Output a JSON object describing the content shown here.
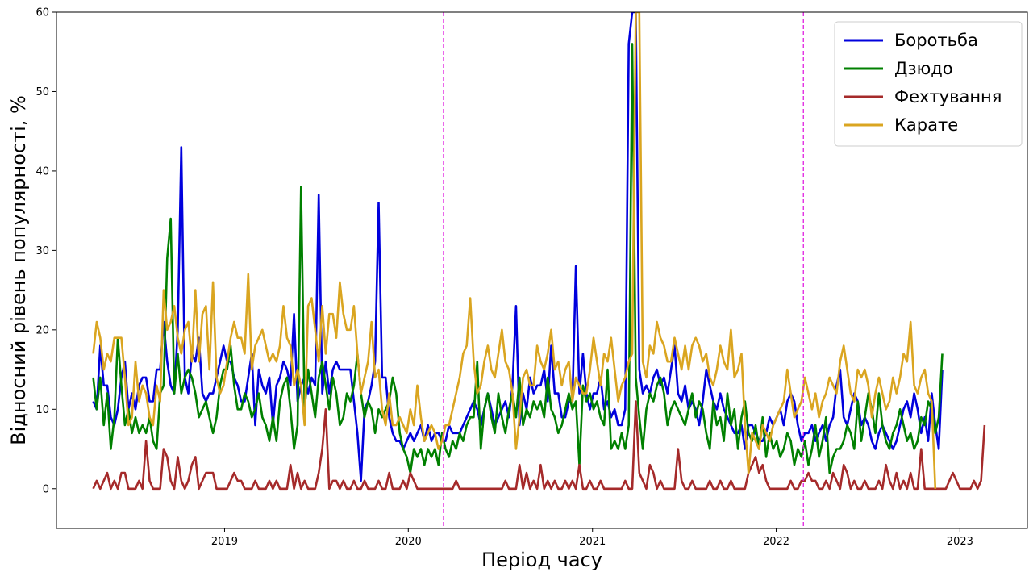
{
  "chart_data": {
    "type": "line",
    "title": "",
    "xlabel": "Період часу",
    "ylabel": "Відносний рівень популярності, %",
    "x_start": "2018-04-15",
    "x_step_days": 7,
    "xlim": [
      "2018-02-01",
      "2023-05-15"
    ],
    "ylim": [
      -5,
      60
    ],
    "yticks": [
      0,
      10,
      20,
      30,
      40,
      50,
      60
    ],
    "xticks": [
      {
        "date": "2019-01-01",
        "label": "2019"
      },
      {
        "date": "2020-01-01",
        "label": "2020"
      },
      {
        "date": "2021-01-01",
        "label": "2021"
      },
      {
        "date": "2022-01-01",
        "label": "2022"
      },
      {
        "date": "2023-01-01",
        "label": "2023"
      }
    ],
    "vlines": [
      {
        "date": "2020-03-11",
        "color": "#e020e0"
      },
      {
        "date": "2022-02-24",
        "color": "#e020e0"
      }
    ],
    "legend_position": "top-right",
    "grid": false,
    "series": [
      {
        "name": "Боротьба",
        "color": "#0000dd",
        "values": [
          11,
          10,
          18,
          13,
          13,
          9,
          8,
          10,
          14,
          16,
          10,
          12,
          10,
          13,
          14,
          14,
          11,
          11,
          15,
          15,
          21,
          16,
          13,
          12,
          20,
          43,
          14,
          12,
          17,
          16,
          19,
          12,
          11,
          12,
          12,
          14,
          16,
          18,
          16,
          16,
          14,
          13,
          11,
          11,
          14,
          17,
          8,
          15,
          13,
          12,
          14,
          8,
          13,
          14,
          16,
          15,
          13,
          22,
          11,
          13,
          14,
          12,
          14,
          13,
          37,
          12,
          16,
          12,
          15,
          16,
          15,
          15,
          15,
          15,
          11,
          7,
          1,
          10,
          11,
          13,
          16,
          36,
          14,
          14,
          9,
          7,
          6,
          6,
          5,
          6,
          7,
          6,
          7,
          8,
          6,
          8,
          6,
          7,
          7,
          6,
          6,
          8,
          7,
          7,
          7,
          8,
          9,
          10,
          11,
          10,
          8,
          10,
          12,
          10,
          8,
          9,
          10,
          11,
          9,
          13,
          23,
          8,
          12,
          10,
          14,
          12,
          13,
          13,
          15,
          11,
          18,
          12,
          12,
          9,
          9,
          11,
          11,
          28,
          12,
          17,
          12,
          10,
          12,
          12,
          14,
          10,
          11,
          9,
          10,
          8,
          8,
          10,
          56,
          60,
          60,
          15,
          12,
          13,
          12,
          14,
          15,
          13,
          14,
          12,
          15,
          18,
          12,
          11,
          13,
          10,
          11,
          10,
          8,
          11,
          15,
          13,
          11,
          10,
          12,
          10,
          9,
          8,
          7,
          7,
          8,
          5,
          8,
          8,
          7,
          6,
          6,
          7,
          9,
          8,
          9,
          10,
          8,
          11,
          12,
          11,
          8,
          6,
          7,
          7,
          8,
          6,
          7,
          8,
          6,
          8,
          9,
          13,
          15,
          9,
          8,
          10,
          12,
          11,
          8,
          9,
          8,
          6,
          5,
          7,
          8,
          7,
          6,
          5,
          6,
          8,
          10,
          11,
          9,
          12,
          10,
          7,
          9,
          6,
          12,
          8,
          5,
          15
        ]
      },
      {
        "name": "Дзюдо",
        "color": "#008000",
        "values": [
          14,
          10,
          14,
          8,
          12,
          5,
          9,
          19,
          13,
          8,
          10,
          7,
          9,
          7,
          8,
          7,
          9,
          6,
          5,
          12,
          13,
          29,
          34,
          12,
          17,
          12,
          14,
          15,
          14,
          12,
          9,
          10,
          11,
          9,
          7,
          9,
          13,
          15,
          15,
          18,
          13,
          10,
          10,
          12,
          11,
          9,
          10,
          12,
          9,
          8,
          6,
          9,
          6,
          11,
          13,
          14,
          10,
          5,
          8,
          38,
          10,
          15,
          12,
          9,
          14,
          16,
          13,
          10,
          14,
          12,
          8,
          9,
          12,
          11,
          13,
          17,
          12,
          9,
          11,
          10,
          7,
          10,
          9,
          10,
          11,
          14,
          12,
          7,
          5,
          4,
          2,
          5,
          4,
          5,
          3,
          5,
          4,
          5,
          3,
          7,
          5,
          4,
          6,
          5,
          7,
          6,
          8,
          9,
          9,
          16,
          5,
          10,
          12,
          9,
          7,
          12,
          9,
          7,
          10,
          12,
          9,
          14,
          8,
          10,
          9,
          11,
          10,
          11,
          9,
          14,
          10,
          9,
          7,
          8,
          10,
          12,
          10,
          11,
          3,
          13,
          11,
          12,
          10,
          11,
          9,
          8,
          15,
          5,
          6,
          5,
          7,
          5,
          8,
          56,
          14,
          9,
          5,
          10,
          12,
          11,
          13,
          14,
          12,
          8,
          10,
          11,
          10,
          9,
          8,
          10,
          12,
          9,
          11,
          10,
          7,
          5,
          11,
          8,
          9,
          6,
          12,
          8,
          10,
          5,
          9,
          11,
          7,
          6,
          8,
          5,
          9,
          4,
          7,
          5,
          6,
          4,
          5,
          7,
          6,
          3,
          5,
          4,
          6,
          3,
          5,
          8,
          4,
          6,
          9,
          2,
          4,
          5,
          5,
          6,
          8,
          7,
          5,
          11,
          6,
          9,
          12,
          10,
          7,
          12,
          8,
          6,
          5,
          7,
          8,
          10,
          8,
          6,
          7,
          5,
          6,
          9,
          8,
          11,
          10,
          7,
          9,
          17
        ]
      },
      {
        "name": "Фехтування",
        "color": "#a52a2a",
        "values": [
          0,
          1,
          0,
          1,
          2,
          0,
          1,
          0,
          2,
          2,
          0,
          0,
          0,
          1,
          0,
          6,
          1,
          0,
          0,
          0,
          5,
          4,
          1,
          0,
          4,
          1,
          0,
          1,
          3,
          4,
          0,
          1,
          2,
          2,
          2,
          0,
          0,
          0,
          0,
          1,
          2,
          1,
          1,
          0,
          0,
          0,
          1,
          0,
          0,
          0,
          1,
          0,
          1,
          0,
          0,
          0,
          3,
          0,
          2,
          0,
          1,
          0,
          0,
          0,
          2,
          5,
          10,
          0,
          1,
          1,
          0,
          1,
          0,
          0,
          1,
          0,
          0,
          1,
          0,
          0,
          0,
          1,
          0,
          0,
          2,
          0,
          0,
          0,
          1,
          0,
          2,
          1,
          0,
          0,
          0,
          0,
          0,
          0,
          0,
          0,
          0,
          0,
          0,
          1,
          0,
          0,
          0,
          0,
          0,
          0,
          0,
          0,
          0,
          0,
          0,
          0,
          0,
          1,
          0,
          0,
          0,
          3,
          0,
          2,
          0,
          1,
          0,
          3,
          0,
          1,
          0,
          1,
          0,
          0,
          1,
          0,
          1,
          0,
          3,
          0,
          0,
          1,
          0,
          0,
          1,
          0,
          0,
          0,
          0,
          0,
          0,
          1,
          0,
          0,
          11,
          2,
          1,
          0,
          3,
          2,
          0,
          1,
          0,
          0,
          0,
          0,
          5,
          1,
          0,
          0,
          1,
          0,
          0,
          0,
          0,
          1,
          0,
          0,
          1,
          0,
          0,
          1,
          0,
          0,
          0,
          0,
          2,
          3,
          4,
          2,
          3,
          1,
          0,
          0,
          0,
          0,
          0,
          0,
          1,
          0,
          0,
          1,
          1,
          2,
          1,
          1,
          0,
          0,
          1,
          0,
          2,
          1,
          0,
          3,
          2,
          0,
          1,
          0,
          0,
          1,
          0,
          0,
          0,
          1,
          0,
          3,
          1,
          0,
          2,
          0,
          1,
          0,
          2,
          0,
          0,
          5,
          0,
          0,
          0,
          0,
          0,
          0,
          0,
          1,
          2,
          1,
          0,
          0,
          0,
          0,
          1,
          0,
          1,
          8
        ]
      },
      {
        "name": "Карате",
        "color": "#daa520",
        "values": [
          17,
          21,
          19,
          15,
          17,
          16,
          19,
          19,
          19,
          14,
          8,
          9,
          16,
          11,
          13,
          12,
          9,
          8,
          13,
          11,
          25,
          20,
          21,
          23,
          19,
          17,
          20,
          21,
          16,
          25,
          16,
          22,
          23,
          15,
          26,
          14,
          12,
          13,
          16,
          19,
          21,
          19,
          19,
          17,
          27,
          15,
          18,
          19,
          20,
          18,
          16,
          17,
          16,
          18,
          23,
          19,
          18,
          13,
          15,
          13,
          8,
          23,
          24,
          20,
          16,
          23,
          17,
          22,
          22,
          19,
          26,
          22,
          20,
          20,
          23,
          17,
          12,
          14,
          16,
          21,
          14,
          15,
          10,
          8,
          12,
          8,
          8,
          9,
          8,
          7,
          10,
          8,
          13,
          9,
          6,
          7,
          8,
          7,
          5,
          6,
          8,
          8,
          10,
          12,
          14,
          17,
          18,
          24,
          16,
          12,
          13,
          16,
          18,
          15,
          14,
          17,
          20,
          16,
          15,
          12,
          5,
          9,
          14,
          15,
          13,
          13,
          18,
          16,
          15,
          17,
          20,
          15,
          16,
          13,
          15,
          16,
          11,
          14,
          13,
          12,
          12,
          15,
          19,
          16,
          13,
          17,
          16,
          19,
          15,
          11,
          13,
          14,
          16,
          17,
          60,
          60,
          16,
          14,
          18,
          17,
          21,
          19,
          18,
          16,
          16,
          19,
          17,
          15,
          18,
          15,
          18,
          19,
          18,
          16,
          17,
          14,
          13,
          15,
          18,
          16,
          15,
          20,
          14,
          15,
          17,
          8,
          2,
          7,
          6,
          5,
          8,
          7,
          6,
          8,
          9,
          10,
          11,
          15,
          12,
          9,
          10,
          11,
          14,
          12,
          10,
          12,
          9,
          11,
          12,
          14,
          13,
          12,
          16,
          18,
          15,
          12,
          11,
          15,
          14,
          15,
          13,
          9,
          12,
          14,
          12,
          10,
          11,
          14,
          12,
          14,
          17,
          16,
          21,
          13,
          12,
          14,
          15,
          12,
          11,
          0
        ]
      }
    ]
  }
}
